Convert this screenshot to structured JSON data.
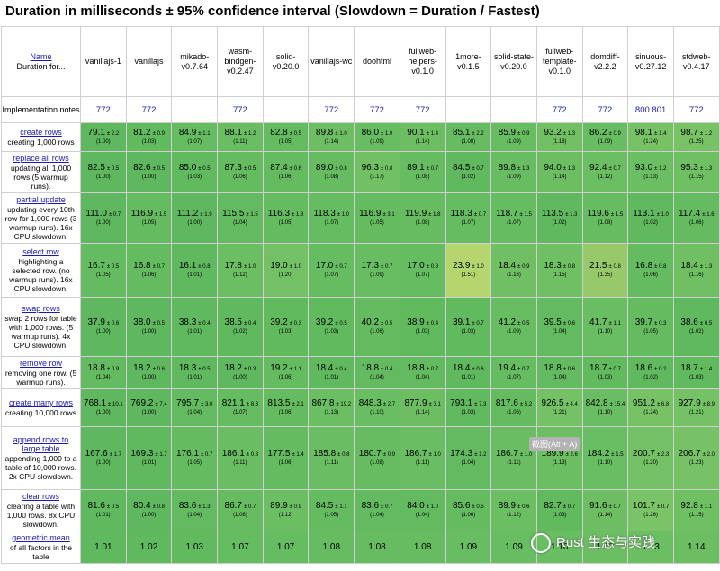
{
  "title": "Duration in milliseconds ± 95% confidence interval (Slowdown = Duration / Fastest)",
  "corner": {
    "link": "Name",
    "sub": "Duration for..."
  },
  "impl_label": "Implementation notes",
  "frameworks": [
    {
      "name": "vanillajs-1",
      "note": "772"
    },
    {
      "name": "vanillajs",
      "note": "772"
    },
    {
      "name": "mikado-v0.7.64",
      "note": ""
    },
    {
      "name": "wasm-bindgen-v0.2.47",
      "note": "772"
    },
    {
      "name": "solid-v0.20.0",
      "note": ""
    },
    {
      "name": "vanillajs-wc",
      "note": "772"
    },
    {
      "name": "doohtml",
      "note": "772"
    },
    {
      "name": "fullweb-helpers-v0.1.0",
      "note": "772"
    },
    {
      "name": "1more-v0.1.5",
      "note": ""
    },
    {
      "name": "solid-state-v0.20.0",
      "note": ""
    },
    {
      "name": "fullweb-template-v0.1.0",
      "note": "772"
    },
    {
      "name": "domdiff-v2.2.2",
      "note": "772"
    },
    {
      "name": "sinuous-v0.27.12",
      "note": "800 801"
    },
    {
      "name": "stdweb-v0.4.17",
      "note": "772"
    }
  ],
  "rows": [
    {
      "name": "create rows",
      "desc": "creating 1,000 rows",
      "cells": [
        {
          "v": "79.1",
          "ci": "± 2.2",
          "s": "(1.00)",
          "c": "#5fb85f"
        },
        {
          "v": "81.2",
          "ci": "± 0.9",
          "s": "(1.03)",
          "c": "#62ba5f"
        },
        {
          "v": "84.9",
          "ci": "± 1.1",
          "s": "(1.07)",
          "c": "#66bc61"
        },
        {
          "v": "88.1",
          "ci": "± 1.2",
          "s": "(1.11)",
          "c": "#6abd62"
        },
        {
          "v": "82.8",
          "ci": "± 0.5",
          "s": "(1.05)",
          "c": "#64bb60"
        },
        {
          "v": "89.8",
          "ci": "± 1.0",
          "s": "(1.14)",
          "c": "#6dbe63"
        },
        {
          "v": "86.0",
          "ci": "± 1.0",
          "s": "(1.09)",
          "c": "#68bd62"
        },
        {
          "v": "90.1",
          "ci": "± 1.4",
          "s": "(1.14)",
          "c": "#6dbe63"
        },
        {
          "v": "85.1",
          "ci": "± 2.2",
          "s": "(1.08)",
          "c": "#67bc61"
        },
        {
          "v": "85.9",
          "ci": "± 0.9",
          "s": "(1.09)",
          "c": "#68bd62"
        },
        {
          "v": "93.2",
          "ci": "± 1.3",
          "s": "(1.18)",
          "c": "#72c064"
        },
        {
          "v": "86.2",
          "ci": "± 0.9",
          "s": "(1.09)",
          "c": "#68bd62"
        },
        {
          "v": "98.1",
          "ci": "± 1.4",
          "s": "(1.24)",
          "c": "#78c266"
        },
        {
          "v": "98.7",
          "ci": "± 1.2",
          "s": "(1.25)",
          "c": "#79c266"
        }
      ]
    },
    {
      "name": "replace all rows",
      "desc": "updating all 1,000 rows (5 warmup runs).",
      "cells": [
        {
          "v": "82.5",
          "ci": "± 0.5",
          "s": "(1.00)",
          "c": "#5fb85f"
        },
        {
          "v": "82.6",
          "ci": "± 0.5",
          "s": "(1.00)",
          "c": "#5fb85f"
        },
        {
          "v": "85.0",
          "ci": "± 0.5",
          "s": "(1.03)",
          "c": "#62ba5f"
        },
        {
          "v": "87.3",
          "ci": "± 0.5",
          "s": "(1.06)",
          "c": "#65bb60"
        },
        {
          "v": "87.4",
          "ci": "± 0.6",
          "s": "(1.06)",
          "c": "#65bb60"
        },
        {
          "v": "89.0",
          "ci": "± 0.8",
          "s": "(1.08)",
          "c": "#67bc61"
        },
        {
          "v": "96.3",
          "ci": "± 0.8",
          "s": "(1.17)",
          "c": "#71c064"
        },
        {
          "v": "89.1",
          "ci": "± 0.7",
          "s": "(1.08)",
          "c": "#67bc61"
        },
        {
          "v": "84.5",
          "ci": "± 0.7",
          "s": "(1.02)",
          "c": "#61b95f"
        },
        {
          "v": "89.8",
          "ci": "± 1.3",
          "s": "(1.09)",
          "c": "#68bd62"
        },
        {
          "v": "94.0",
          "ci": "± 1.3",
          "s": "(1.14)",
          "c": "#6dbe63"
        },
        {
          "v": "92.4",
          "ci": "± 0.7",
          "s": "(1.12)",
          "c": "#6bbe62"
        },
        {
          "v": "93.0",
          "ci": "± 1.2",
          "s": "(1.13)",
          "c": "#6cbe63"
        },
        {
          "v": "95.3",
          "ci": "± 1.3",
          "s": "(1.15)",
          "c": "#6fbf63"
        }
      ]
    },
    {
      "name": "partial update",
      "desc": "updating every 10th row for 1,000 rows (3 warmup runs). 16x CPU slowdown.",
      "cells": [
        {
          "v": "111.0",
          "ci": "± 0.7",
          "s": "(1.00)",
          "c": "#5fb85f"
        },
        {
          "v": "116.9",
          "ci": "± 1.5",
          "s": "(1.05)",
          "c": "#64bb60"
        },
        {
          "v": "111.2",
          "ci": "± 1.9",
          "s": "(1.00)",
          "c": "#5fb85f"
        },
        {
          "v": "115.5",
          "ci": "± 1.5",
          "s": "(1.04)",
          "c": "#63ba60"
        },
        {
          "v": "116.3",
          "ci": "± 1.8",
          "s": "(1.05)",
          "c": "#64bb60"
        },
        {
          "v": "118.3",
          "ci": "± 1.0",
          "s": "(1.07)",
          "c": "#66bc61"
        },
        {
          "v": "116.9",
          "ci": "± 3.1",
          "s": "(1.05)",
          "c": "#64bb60"
        },
        {
          "v": "119.9",
          "ci": "± 1.8",
          "s": "(1.08)",
          "c": "#67bc61"
        },
        {
          "v": "118.3",
          "ci": "± 0.7",
          "s": "(1.07)",
          "c": "#66bc61"
        },
        {
          "v": "118.7",
          "ci": "± 1.5",
          "s": "(1.07)",
          "c": "#66bc61"
        },
        {
          "v": "113.5",
          "ci": "± 1.3",
          "s": "(1.02)",
          "c": "#61b95f"
        },
        {
          "v": "119.6",
          "ci": "± 1.5",
          "s": "(1.08)",
          "c": "#67bc61"
        },
        {
          "v": "113.1",
          "ci": "± 1.0",
          "s": "(1.02)",
          "c": "#61b95f"
        },
        {
          "v": "117.4",
          "ci": "± 1.6",
          "s": "(1.06)",
          "c": "#65bb60"
        }
      ]
    },
    {
      "name": "select row",
      "desc": "highlighting a selected row. (no warmup runs). 16x CPU slowdown.",
      "cells": [
        {
          "v": "16.7",
          "ci": "± 0.5",
          "s": "(1.05)",
          "c": "#64bb60"
        },
        {
          "v": "16.8",
          "ci": "± 0.7",
          "s": "(1.06)",
          "c": "#65bb60"
        },
        {
          "v": "16.1",
          "ci": "± 0.8",
          "s": "(1.01)",
          "c": "#60b95f"
        },
        {
          "v": "17.8",
          "ci": "± 1.0",
          "s": "(1.12)",
          "c": "#6bbe62"
        },
        {
          "v": "19.0",
          "ci": "± 1.0",
          "s": "(1.20)",
          "c": "#74c165"
        },
        {
          "v": "17.0",
          "ci": "± 0.7",
          "s": "(1.07)",
          "c": "#66bc61"
        },
        {
          "v": "17.3",
          "ci": "± 0.7",
          "s": "(1.09)",
          "c": "#68bd62"
        },
        {
          "v": "17.0",
          "ci": "± 0.8",
          "s": "(1.07)",
          "c": "#66bc61"
        },
        {
          "v": "23.9",
          "ci": "± 1.0",
          "s": "(1.51)",
          "c": "#b5d56f"
        },
        {
          "v": "18.4",
          "ci": "± 0.9",
          "s": "(1.16)",
          "c": "#70bf63"
        },
        {
          "v": "18.3",
          "ci": "± 0.8",
          "s": "(1.15)",
          "c": "#6fbf63"
        },
        {
          "v": "21.5",
          "ci": "± 0.8",
          "s": "(1.35)",
          "c": "#97c96b"
        },
        {
          "v": "16.8",
          "ci": "± 0.8",
          "s": "(1.06)",
          "c": "#65bb60"
        },
        {
          "v": "18.4",
          "ci": "± 1.3",
          "s": "(1.16)",
          "c": "#70bf63"
        }
      ]
    },
    {
      "name": "swap rows",
      "desc": "swap 2 rows for table with 1,000 rows. (5 warmup runs). 4x CPU slowdown.",
      "cells": [
        {
          "v": "37.9",
          "ci": "± 0.6",
          "s": "(1.00)",
          "c": "#5fb85f"
        },
        {
          "v": "38.0",
          "ci": "± 0.5",
          "s": "(1.00)",
          "c": "#5fb85f"
        },
        {
          "v": "38.3",
          "ci": "± 0.4",
          "s": "(1.01)",
          "c": "#60b95f"
        },
        {
          "v": "38.5",
          "ci": "± 0.4",
          "s": "(1.02)",
          "c": "#61b95f"
        },
        {
          "v": "39.2",
          "ci": "± 0.3",
          "s": "(1.03)",
          "c": "#62ba5f"
        },
        {
          "v": "39.2",
          "ci": "± 0.5",
          "s": "(1.03)",
          "c": "#62ba5f"
        },
        {
          "v": "40.2",
          "ci": "± 0.5",
          "s": "(1.06)",
          "c": "#65bb60"
        },
        {
          "v": "38.9",
          "ci": "± 0.4",
          "s": "(1.03)",
          "c": "#62ba5f"
        },
        {
          "v": "39.1",
          "ci": "± 0.7",
          "s": "(1.03)",
          "c": "#62ba5f"
        },
        {
          "v": "41.2",
          "ci": "± 0.5",
          "s": "(1.09)",
          "c": "#68bd62"
        },
        {
          "v": "39.5",
          "ci": "± 0.6",
          "s": "(1.04)",
          "c": "#63ba60"
        },
        {
          "v": "41.7",
          "ci": "± 1.1",
          "s": "(1.10)",
          "c": "#69bd62"
        },
        {
          "v": "39.7",
          "ci": "± 0.3",
          "s": "(1.05)",
          "c": "#64bb60"
        },
        {
          "v": "38.6",
          "ci": "± 0.5",
          "s": "(1.02)",
          "c": "#61b95f"
        }
      ]
    },
    {
      "name": "remove row",
      "desc": "removing one row. (5 warmup runs).",
      "cells": [
        {
          "v": "18.8",
          "ci": "± 0.9",
          "s": "(1.04)",
          "c": "#63ba60"
        },
        {
          "v": "18.2",
          "ci": "± 0.6",
          "s": "(1.00)",
          "c": "#5fb85f"
        },
        {
          "v": "18.3",
          "ci": "± 0.5",
          "s": "(1.01)",
          "c": "#60b95f"
        },
        {
          "v": "18.2",
          "ci": "± 0.3",
          "s": "(1.00)",
          "c": "#5fb85f"
        },
        {
          "v": "19.2",
          "ci": "± 1.1",
          "s": "(1.06)",
          "c": "#65bb60"
        },
        {
          "v": "18.4",
          "ci": "± 0.4",
          "s": "(1.01)",
          "c": "#60b95f"
        },
        {
          "v": "18.8",
          "ci": "± 0.4",
          "s": "(1.04)",
          "c": "#63ba60"
        },
        {
          "v": "18.8",
          "ci": "± 0.7",
          "s": "(1.04)",
          "c": "#63ba60"
        },
        {
          "v": "18.4",
          "ci": "± 0.6",
          "s": "(1.01)",
          "c": "#60b95f"
        },
        {
          "v": "19.4",
          "ci": "± 0.7",
          "s": "(1.07)",
          "c": "#66bc61"
        },
        {
          "v": "18.8",
          "ci": "± 0.6",
          "s": "(1.04)",
          "c": "#63ba60"
        },
        {
          "v": "18.7",
          "ci": "± 0.7",
          "s": "(1.03)",
          "c": "#62ba5f"
        },
        {
          "v": "18.6",
          "ci": "± 0.2",
          "s": "(1.02)",
          "c": "#61b95f"
        },
        {
          "v": "18.7",
          "ci": "± 1.4",
          "s": "(1.03)",
          "c": "#62ba5f"
        }
      ]
    },
    {
      "name": "create many rows",
      "desc": "creating 10,000 rows",
      "cells": [
        {
          "v": "768.1",
          "ci": "± 10.1",
          "s": "(1.00)",
          "c": "#5fb85f"
        },
        {
          "v": "769.2",
          "ci": "± 7.4",
          "s": "(1.00)",
          "c": "#5fb85f"
        },
        {
          "v": "795.7",
          "ci": "± 3.0",
          "s": "(1.04)",
          "c": "#63ba60"
        },
        {
          "v": "821.1",
          "ci": "± 8.3",
          "s": "(1.07)",
          "c": "#66bc61"
        },
        {
          "v": "813.5",
          "ci": "± 2.1",
          "s": "(1.06)",
          "c": "#65bb60"
        },
        {
          "v": "867.8",
          "ci": "± 19.2",
          "s": "(1.13)",
          "c": "#6cbe63"
        },
        {
          "v": "848.3",
          "ci": "± 2.7",
          "s": "(1.10)",
          "c": "#69bd62"
        },
        {
          "v": "877.9",
          "ci": "± 3.1",
          "s": "(1.14)",
          "c": "#6dbe63"
        },
        {
          "v": "793.1",
          "ci": "± 7.3",
          "s": "(1.03)",
          "c": "#62ba5f"
        },
        {
          "v": "817.6",
          "ci": "± 5.2",
          "s": "(1.06)",
          "c": "#65bb60"
        },
        {
          "v": "926.5",
          "ci": "± 4.4",
          "s": "(1.21)",
          "c": "#75c165"
        },
        {
          "v": "842.8",
          "ci": "± 15.4",
          "s": "(1.10)",
          "c": "#69bd62"
        },
        {
          "v": "951.2",
          "ci": "± 6.8",
          "s": "(1.24)",
          "c": "#78c266"
        },
        {
          "v": "927.9",
          "ci": "± 8.9",
          "s": "(1.21)",
          "c": "#75c165"
        }
      ]
    },
    {
      "name": "append rows to large table",
      "desc": "appending 1,000 to a table of 10,000 rows. 2x CPU slowdown.",
      "cells": [
        {
          "v": "167.6",
          "ci": "± 1.7",
          "s": "(1.00)",
          "c": "#5fb85f"
        },
        {
          "v": "169.3",
          "ci": "± 1.7",
          "s": "(1.01)",
          "c": "#60b95f"
        },
        {
          "v": "176.1",
          "ci": "± 0.7",
          "s": "(1.05)",
          "c": "#64bb60"
        },
        {
          "v": "186.1",
          "ci": "± 0.8",
          "s": "(1.11)",
          "c": "#6abd62"
        },
        {
          "v": "177.5",
          "ci": "± 1.4",
          "s": "(1.06)",
          "c": "#65bb60"
        },
        {
          "v": "185.8",
          "ci": "± 0.8",
          "s": "(1.11)",
          "c": "#6abd62"
        },
        {
          "v": "180.7",
          "ci": "± 0.9",
          "s": "(1.08)",
          "c": "#67bc61"
        },
        {
          "v": "186.7",
          "ci": "± 1.0",
          "s": "(1.11)",
          "c": "#6abd62"
        },
        {
          "v": "174.3",
          "ci": "± 1.2",
          "s": "(1.04)",
          "c": "#63ba60"
        },
        {
          "v": "186.7",
          "ci": "± 1.0",
          "s": "(1.11)",
          "c": "#6abd62"
        },
        {
          "v": "189.9",
          "ci": "± 2.6",
          "s": "(1.13)",
          "c": "#6cbe63"
        },
        {
          "v": "184.2",
          "ci": "± 1.5",
          "s": "(1.10)",
          "c": "#69bd62"
        },
        {
          "v": "200.7",
          "ci": "± 2.3",
          "s": "(1.20)",
          "c": "#74c165"
        },
        {
          "v": "206.7",
          "ci": "± 2.0",
          "s": "(1.23)",
          "c": "#77c266"
        }
      ]
    },
    {
      "name": "clear rows",
      "desc": "clearing a table with 1,000 rows. 8x CPU slowdown.",
      "cells": [
        {
          "v": "81.6",
          "ci": "± 0.5",
          "s": "(1.01)",
          "c": "#60b95f"
        },
        {
          "v": "80.4",
          "ci": "± 0.8",
          "s": "(1.00)",
          "c": "#5fb85f"
        },
        {
          "v": "83.6",
          "ci": "± 1.3",
          "s": "(1.04)",
          "c": "#63ba60"
        },
        {
          "v": "86.7",
          "ci": "± 0.7",
          "s": "(1.08)",
          "c": "#67bc61"
        },
        {
          "v": "89.9",
          "ci": "± 0.9",
          "s": "(1.12)",
          "c": "#6bbe62"
        },
        {
          "v": "84.5",
          "ci": "± 1.1",
          "s": "(1.05)",
          "c": "#64bb60"
        },
        {
          "v": "83.6",
          "ci": "± 0.7",
          "s": "(1.04)",
          "c": "#63ba60"
        },
        {
          "v": "84.0",
          "ci": "± 1.0",
          "s": "(1.04)",
          "c": "#63ba60"
        },
        {
          "v": "85.6",
          "ci": "± 0.5",
          "s": "(1.06)",
          "c": "#65bb60"
        },
        {
          "v": "89.9",
          "ci": "± 0.6",
          "s": "(1.12)",
          "c": "#6bbe62"
        },
        {
          "v": "82.7",
          "ci": "± 0.7",
          "s": "(1.03)",
          "c": "#62ba5f"
        },
        {
          "v": "91.6",
          "ci": "± 0.7",
          "s": "(1.14)",
          "c": "#6dbe63"
        },
        {
          "v": "101.7",
          "ci": "± 0.7",
          "s": "(1.26)",
          "c": "#7ac366"
        },
        {
          "v": "92.8",
          "ci": "± 1.1",
          "s": "(1.15)",
          "c": "#6fbf63"
        }
      ]
    }
  ],
  "geo_row": {
    "name": "geometric mean",
    "desc": "of all factors in the table",
    "cells": [
      {
        "v": "1.01",
        "c": "#60b95f"
      },
      {
        "v": "1.02",
        "c": "#61b95f"
      },
      {
        "v": "1.03",
        "c": "#62ba5f"
      },
      {
        "v": "1.07",
        "c": "#66bc61"
      },
      {
        "v": "1.07",
        "c": "#66bc61"
      },
      {
        "v": "1.08",
        "c": "#67bc61"
      },
      {
        "v": "1.08",
        "c": "#67bc61"
      },
      {
        "v": "1.08",
        "c": "#67bc61"
      },
      {
        "v": "1.09",
        "c": "#68bd62"
      },
      {
        "v": "1.09",
        "c": "#68bd62"
      },
      {
        "v": "1.10",
        "c": "#69bd62"
      },
      {
        "v": "1.12",
        "c": "#6bbe62"
      },
      {
        "v": "1.13",
        "c": "#6cbe63"
      },
      {
        "v": "1.14",
        "c": "#6dbe63"
      }
    ]
  },
  "overlay_tooltip": "截图(Alt + A)",
  "watermark": "Rust 生态与实践"
}
